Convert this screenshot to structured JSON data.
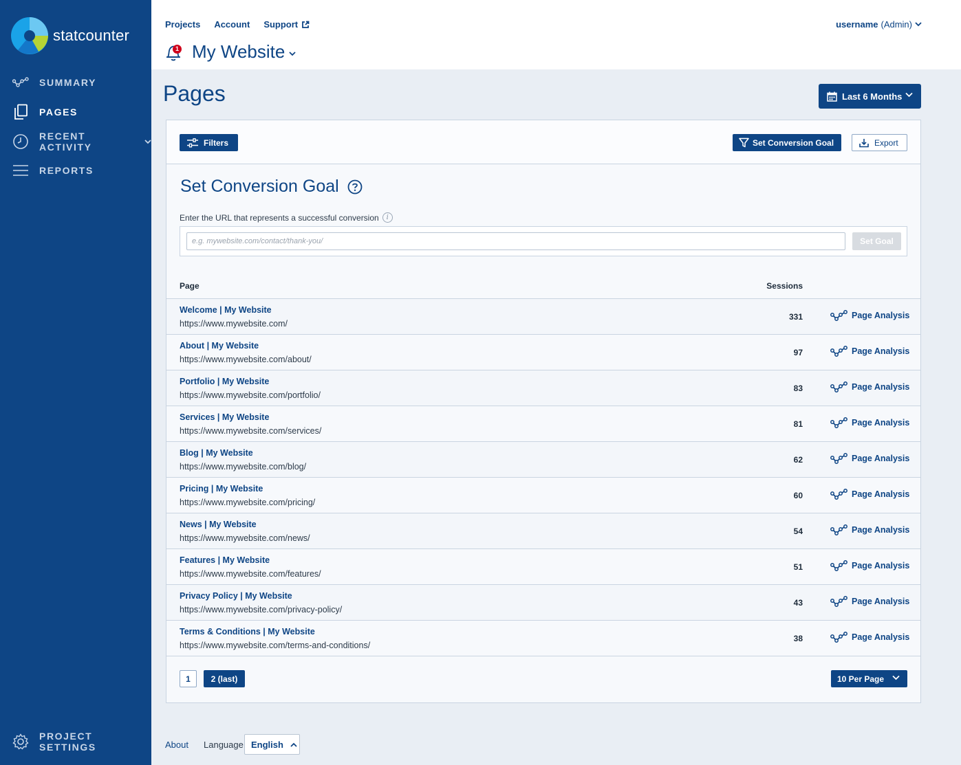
{
  "brand": {
    "name": "statcounter"
  },
  "sidebar": {
    "items": [
      {
        "label": "SUMMARY",
        "icon": "analytics-icon"
      },
      {
        "label": "PAGES",
        "icon": "pages-icon",
        "active": true
      },
      {
        "label": "RECENT ACTIVITY",
        "icon": "clock-icon"
      },
      {
        "label": "REPORTS",
        "icon": "list-icon"
      }
    ],
    "settings_label": "PROJECT SETTINGS"
  },
  "header": {
    "links": [
      "Projects",
      "Account",
      "Support"
    ],
    "username": "username",
    "role": "(Admin)",
    "notification_count": "1",
    "project_name": "My Website"
  },
  "page": {
    "title": "Pages",
    "date_range": "Last 6 Months"
  },
  "toolbar": {
    "filters": "Filters",
    "set_goal": "Set Conversion Goal",
    "export": "Export"
  },
  "conversion": {
    "title": "Set Conversion Goal",
    "description": "Enter the URL that represents a successful conversion",
    "placeholder": "e.g. mywebsite.com/contact/thank-you/",
    "button": "Set Goal"
  },
  "table": {
    "col_page": "Page",
    "col_sessions": "Sessions",
    "analysis_label": "Page Analysis",
    "rows": [
      {
        "title": "Welcome | My Website",
        "url": "https://www.mywebsite.com/",
        "sessions": "331"
      },
      {
        "title": "About | My Website",
        "url": "https://www.mywebsite.com/about/",
        "sessions": "97"
      },
      {
        "title": "Portfolio | My Website",
        "url": "https://www.mywebsite.com/portfolio/",
        "sessions": "83"
      },
      {
        "title": "Services | My Website",
        "url": "https://www.mywebsite.com/services/",
        "sessions": "81"
      },
      {
        "title": "Blog | My Website",
        "url": "https://www.mywebsite.com/blog/",
        "sessions": "62"
      },
      {
        "title": "Pricing | My Website",
        "url": "https://www.mywebsite.com/pricing/",
        "sessions": "60"
      },
      {
        "title": "News | My Website",
        "url": "https://www.mywebsite.com/news/",
        "sessions": "54"
      },
      {
        "title": "Features | My Website",
        "url": "https://www.mywebsite.com/features/",
        "sessions": "51"
      },
      {
        "title": "Privacy Policy | My Website",
        "url": "https://www.mywebsite.com/privacy-policy/",
        "sessions": "43"
      },
      {
        "title": "Terms & Conditions | My Website",
        "url": "https://www.mywebsite.com/terms-and-conditions/",
        "sessions": "38"
      }
    ]
  },
  "pagination": {
    "page1": "1",
    "page2": "2 (last)",
    "per_page": "10 Per Page"
  },
  "footer": {
    "about": "About",
    "language_label": "Language",
    "language": "English"
  },
  "colors": {
    "primary": "#0e4585",
    "background": "#e9eef4",
    "badge": "#d0021b"
  }
}
